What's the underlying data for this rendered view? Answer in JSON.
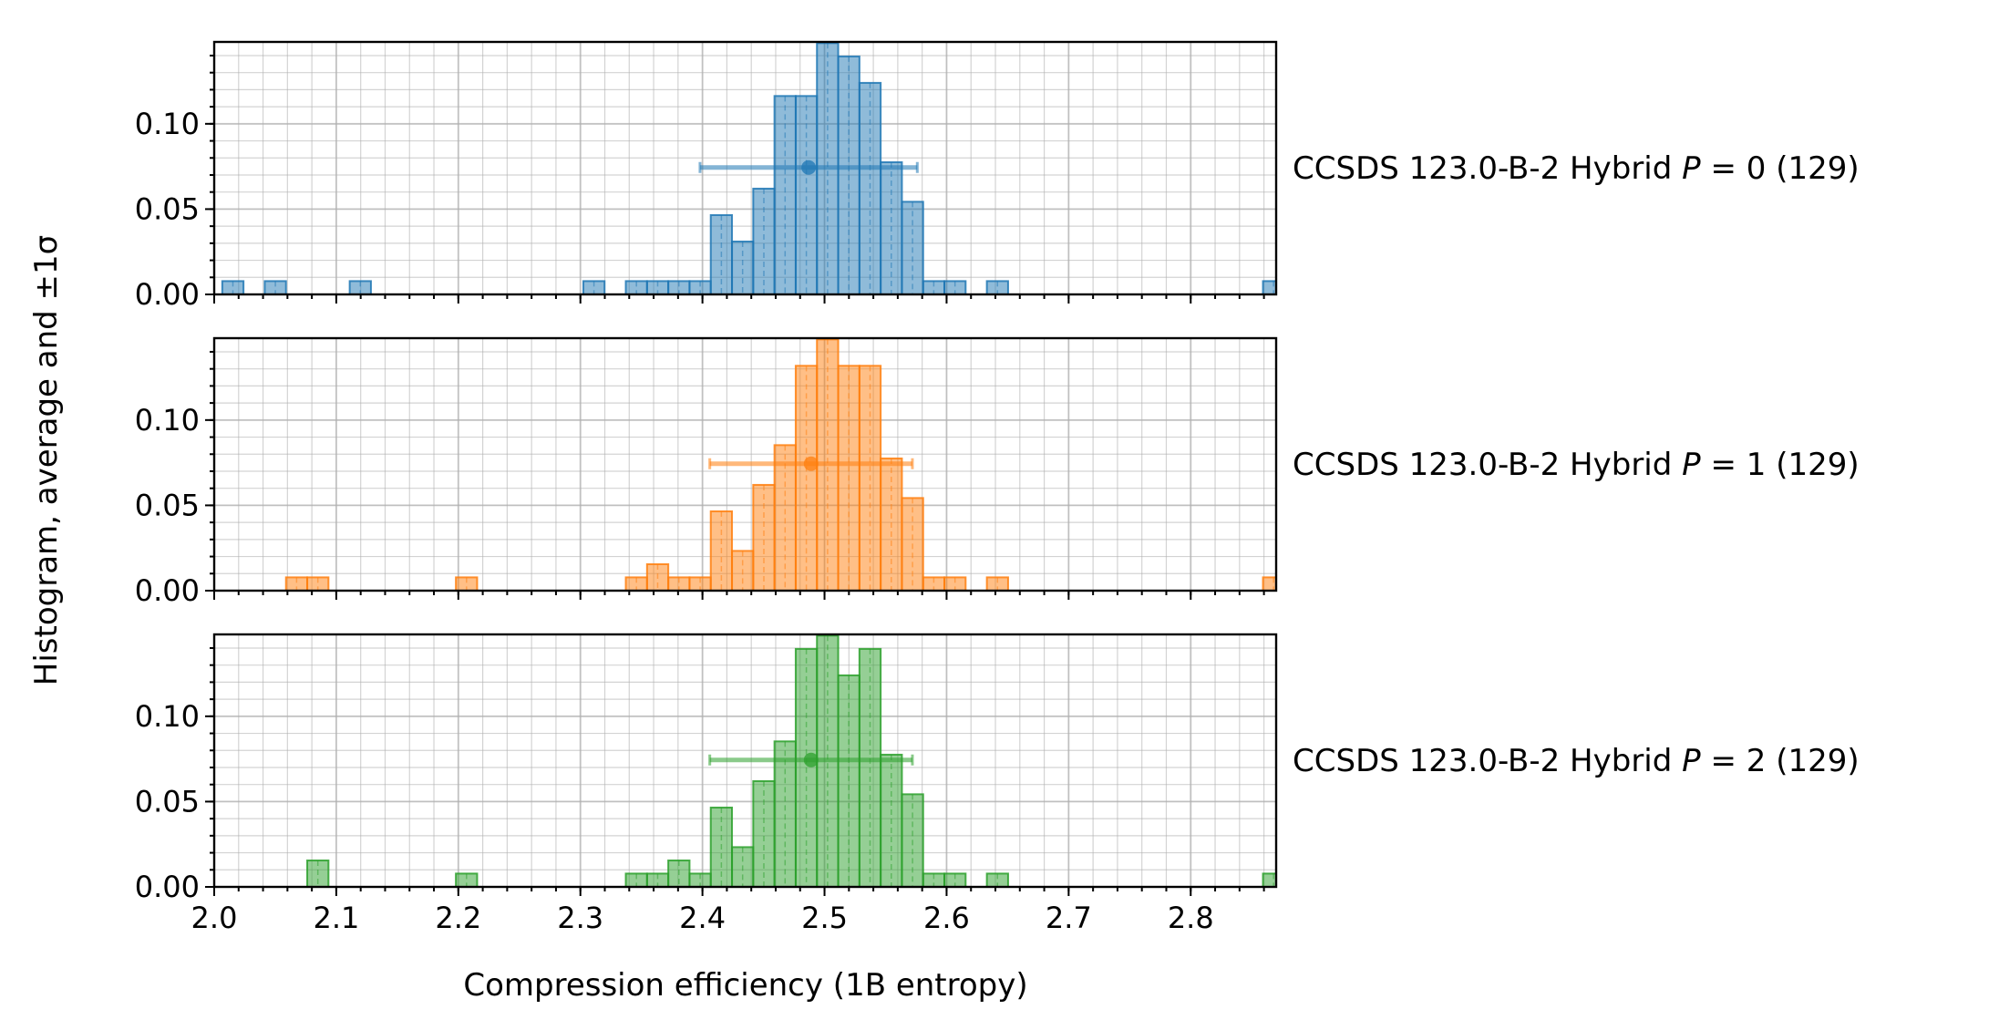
{
  "chart_data": {
    "type": "histogram",
    "xlabel": "Compression efficiency (1B entropy)",
    "ylabel": "Histogram, average and ±1σ",
    "xlim": [
      2.0,
      2.87
    ],
    "ylim": [
      0.0,
      0.148
    ],
    "x_ticks": [
      "2.0",
      "2.1",
      "2.2",
      "2.3",
      "2.4",
      "2.5",
      "2.6",
      "2.7",
      "2.8"
    ],
    "y_ticks": [
      "0.00",
      "0.05",
      "0.10"
    ],
    "grid": true,
    "bin_width": 0.0174,
    "series": [
      {
        "name": "CCSDS 123.0-B-2 Hybrid P = 0 (129)",
        "label_prefix": "CCSDS 123.0-B-2 Hybrid ",
        "label_var": "P",
        "label_eq": " = 0 (129)",
        "color": "#1f77b4",
        "mean": 2.487,
        "std": 0.089,
        "marker_y": 0.0744,
        "bins": [
          [
            2.0066,
            0.0078
          ],
          [
            2.0414,
            0.0078
          ],
          [
            2.111,
            0.0078
          ],
          [
            2.3024,
            0.0078
          ],
          [
            2.3372,
            0.0078
          ],
          [
            2.3546,
            0.0078
          ],
          [
            2.372,
            0.0078
          ],
          [
            2.3894,
            0.0078
          ],
          [
            2.4068,
            0.0465
          ],
          [
            2.4242,
            0.031
          ],
          [
            2.4416,
            0.062
          ],
          [
            2.459,
            0.1163
          ],
          [
            2.4764,
            0.1163
          ],
          [
            2.4938,
            0.1473
          ],
          [
            2.5112,
            0.1395
          ],
          [
            2.5286,
            0.124
          ],
          [
            2.546,
            0.0775
          ],
          [
            2.5634,
            0.0543
          ],
          [
            2.5808,
            0.0078
          ],
          [
            2.5982,
            0.0078
          ],
          [
            2.633,
            0.0078
          ],
          [
            2.8592,
            0.0078
          ]
        ]
      },
      {
        "name": "CCSDS 123.0-B-2 Hybrid P = 1 (129)",
        "label_prefix": "CCSDS 123.0-B-2 Hybrid ",
        "label_var": "P",
        "label_eq": " = 1 (129)",
        "color": "#ff7f0e",
        "mean": 2.489,
        "std": 0.083,
        "marker_y": 0.0744,
        "bins": [
          [
            2.0588,
            0.0078
          ],
          [
            2.0762,
            0.0078
          ],
          [
            2.198,
            0.0078
          ],
          [
            2.3372,
            0.0078
          ],
          [
            2.3546,
            0.0155
          ],
          [
            2.372,
            0.0078
          ],
          [
            2.3894,
            0.0078
          ],
          [
            2.4068,
            0.0465
          ],
          [
            2.4242,
            0.0233
          ],
          [
            2.4416,
            0.062
          ],
          [
            2.459,
            0.0853
          ],
          [
            2.4764,
            0.1318
          ],
          [
            2.4938,
            0.1473
          ],
          [
            2.5112,
            0.1318
          ],
          [
            2.5286,
            0.1318
          ],
          [
            2.546,
            0.0775
          ],
          [
            2.5634,
            0.0543
          ],
          [
            2.5808,
            0.0078
          ],
          [
            2.5982,
            0.0078
          ],
          [
            2.633,
            0.0078
          ],
          [
            2.8592,
            0.0078
          ]
        ]
      },
      {
        "name": "CCSDS 123.0-B-2 Hybrid P = 2 (129)",
        "label_prefix": "CCSDS 123.0-B-2 Hybrid ",
        "label_var": "P",
        "label_eq": " = 2 (129)",
        "color": "#2ca02c",
        "mean": 2.489,
        "std": 0.083,
        "marker_y": 0.0744,
        "bins": [
          [
            2.0762,
            0.0155
          ],
          [
            2.198,
            0.0078
          ],
          [
            2.3372,
            0.0078
          ],
          [
            2.3546,
            0.0078
          ],
          [
            2.372,
            0.0155
          ],
          [
            2.3894,
            0.0078
          ],
          [
            2.4068,
            0.0465
          ],
          [
            2.4242,
            0.0233
          ],
          [
            2.4416,
            0.062
          ],
          [
            2.459,
            0.0853
          ],
          [
            2.4764,
            0.1395
          ],
          [
            2.4938,
            0.1473
          ],
          [
            2.5112,
            0.124
          ],
          [
            2.5286,
            0.1395
          ],
          [
            2.546,
            0.0775
          ],
          [
            2.5634,
            0.0543
          ],
          [
            2.5808,
            0.0078
          ],
          [
            2.5982,
            0.0078
          ],
          [
            2.633,
            0.0078
          ],
          [
            2.8592,
            0.0078
          ]
        ]
      }
    ]
  }
}
